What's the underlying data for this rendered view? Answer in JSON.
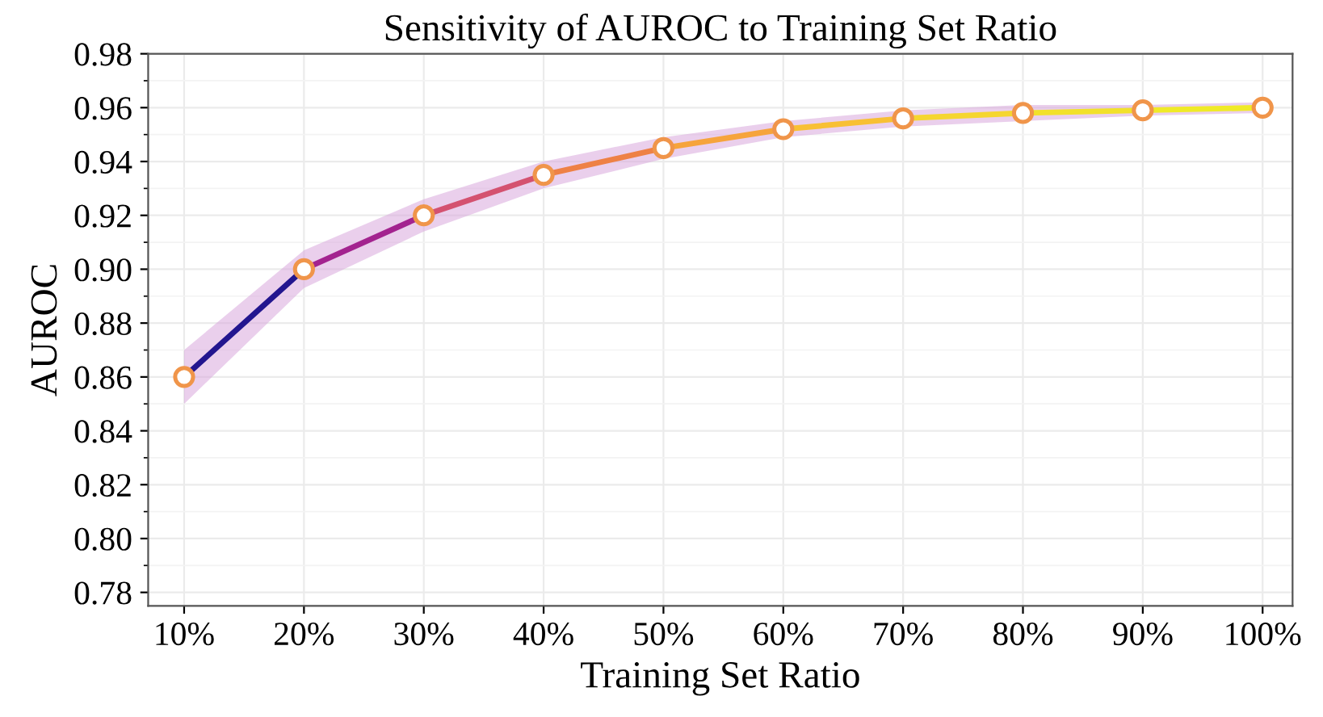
{
  "chart_data": {
    "type": "line",
    "title": "Sensitivity of AUROC to Training Set Ratio",
    "xlabel": "Training Set Ratio",
    "ylabel": "AUROC",
    "categories": [
      "10%",
      "20%",
      "30%",
      "40%",
      "50%",
      "60%",
      "70%",
      "80%",
      "90%",
      "100%"
    ],
    "series": [
      {
        "color": "#23168f",
        "values": [
          0.86,
          0.9,
          null,
          null,
          null,
          null,
          null,
          null,
          null,
          null
        ]
      },
      {
        "color": "#a3238f",
        "values": [
          null,
          0.9,
          0.92,
          null,
          null,
          null,
          null,
          null,
          null,
          null
        ]
      },
      {
        "color": "#d45270",
        "values": [
          null,
          null,
          0.92,
          0.935,
          null,
          null,
          null,
          null,
          null,
          null
        ]
      },
      {
        "color": "#ee8145",
        "values": [
          null,
          null,
          null,
          0.935,
          0.945,
          null,
          null,
          null,
          null,
          null
        ]
      },
      {
        "color": "#f6a43c",
        "values": [
          null,
          null,
          null,
          null,
          0.945,
          0.952,
          null,
          null,
          null,
          null
        ]
      },
      {
        "color": "#f8c034",
        "values": [
          null,
          null,
          null,
          null,
          null,
          0.952,
          0.956,
          null,
          null,
          null
        ]
      },
      {
        "color": "#f5d630",
        "values": [
          null,
          null,
          null,
          null,
          null,
          null,
          0.956,
          0.958,
          null,
          null
        ]
      },
      {
        "color": "#f2e12b",
        "values": [
          null,
          null,
          null,
          null,
          null,
          null,
          null,
          0.958,
          0.959,
          null
        ]
      },
      {
        "color": "#f0ea28",
        "values": [
          null,
          null,
          null,
          null,
          null,
          null,
          null,
          null,
          0.959,
          0.96
        ]
      },
      {
        "type": "scatter",
        "marker": "circle",
        "color": "#f0954a",
        "values": [
          0.86,
          0.9,
          0.92,
          0.935,
          0.945,
          0.952,
          0.956,
          0.958,
          0.959,
          0.96
        ],
        "lower": [
          0.85,
          0.893,
          0.914,
          0.93,
          0.941,
          0.949,
          0.953,
          0.955,
          0.957,
          0.958
        ],
        "upper": [
          0.87,
          0.907,
          0.926,
          0.94,
          0.949,
          0.955,
          0.959,
          0.961,
          0.961,
          0.962
        ]
      }
    ],
    "ylim": [
      0.775,
      0.98
    ],
    "yticks": [
      0.78,
      {
        "value": 0.8,
        "label": "0.80"
      },
      0.82,
      0.84,
      0.86,
      0.88,
      {
        "value": 0.9,
        "label": "0.90"
      },
      0.92,
      0.94,
      0.96,
      0.98
    ],
    "grid": true,
    "line_style": "solid"
  }
}
